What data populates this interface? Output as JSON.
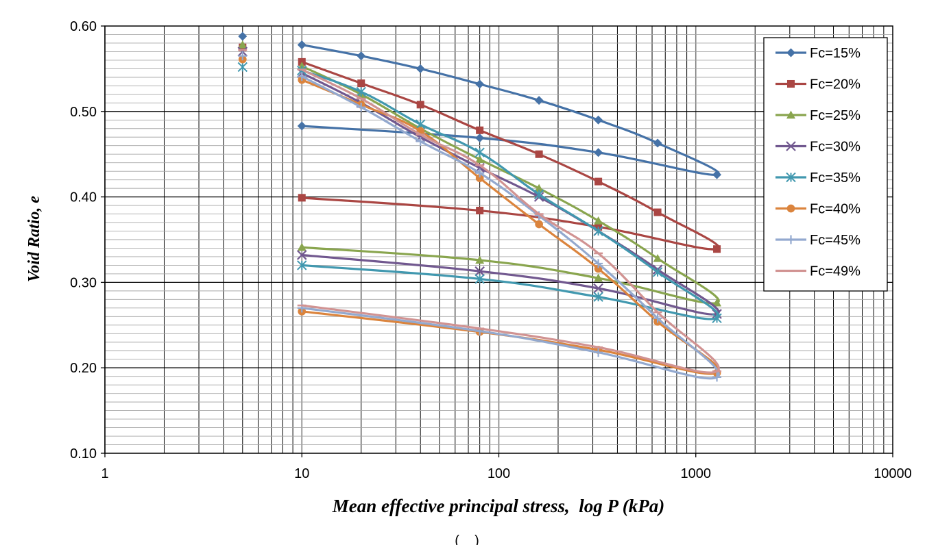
{
  "chart_data": {
    "type": "line",
    "xscale": "log",
    "xlim": [
      1,
      10000
    ],
    "ylim": [
      0.1,
      0.6
    ],
    "xlabel": "Mean effective principal stress,  log P (kPa)",
    "ylabel": "Void Ratio, e",
    "x_ticks": [
      "1",
      "10",
      "100",
      "1000",
      "10000"
    ],
    "y_ticks": [
      "0.10",
      "0.20",
      "0.30",
      "0.40",
      "0.50",
      "0.60"
    ],
    "grid": true,
    "legend_position": "top-right",
    "series": [
      {
        "name": "Fc=15%",
        "color": "#4572A7",
        "marker": "diamond",
        "initial": {
          "x": 5,
          "y": 0.588
        },
        "points": [
          [
            10,
            0.578
          ],
          [
            20,
            0.565
          ],
          [
            40,
            0.55
          ],
          [
            80,
            0.532
          ],
          [
            160,
            0.513
          ],
          [
            320,
            0.49
          ],
          [
            640,
            0.463
          ],
          [
            1280,
            0.426
          ],
          [
            320,
            0.452
          ],
          [
            80,
            0.469
          ],
          [
            10,
            0.483
          ]
        ]
      },
      {
        "name": "Fc=20%",
        "color": "#AA4643",
        "marker": "square",
        "initial": {
          "x": 5,
          "y": 0.575
        },
        "points": [
          [
            10,
            0.558
          ],
          [
            20,
            0.533
          ],
          [
            40,
            0.508
          ],
          [
            80,
            0.478
          ],
          [
            160,
            0.45
          ],
          [
            320,
            0.418
          ],
          [
            640,
            0.382
          ],
          [
            1280,
            0.339
          ],
          [
            320,
            0.365
          ],
          [
            80,
            0.384
          ],
          [
            10,
            0.399
          ]
        ]
      },
      {
        "name": "Fc=25%",
        "color": "#89A54E",
        "marker": "triangle",
        "initial": {
          "x": 5,
          "y": 0.578
        },
        "points": [
          [
            10,
            0.553
          ],
          [
            20,
            0.52
          ],
          [
            40,
            0.48
          ],
          [
            80,
            0.444
          ],
          [
            160,
            0.41
          ],
          [
            320,
            0.372
          ],
          [
            640,
            0.328
          ],
          [
            1280,
            0.276
          ],
          [
            320,
            0.305
          ],
          [
            80,
            0.326
          ],
          [
            10,
            0.341
          ]
        ]
      },
      {
        "name": "Fc=30%",
        "color": "#71588F",
        "marker": "x",
        "initial": {
          "x": 5,
          "y": 0.57
        },
        "points": [
          [
            10,
            0.545
          ],
          [
            20,
            0.51
          ],
          [
            40,
            0.47
          ],
          [
            80,
            0.434
          ],
          [
            160,
            0.4
          ],
          [
            320,
            0.36
          ],
          [
            640,
            0.315
          ],
          [
            1280,
            0.263
          ],
          [
            320,
            0.293
          ],
          [
            80,
            0.313
          ],
          [
            10,
            0.332
          ]
        ]
      },
      {
        "name": "Fc=35%",
        "color": "#4198AF",
        "marker": "star",
        "initial": {
          "x": 5,
          "y": 0.552
        },
        "points": [
          [
            10,
            0.548
          ],
          [
            20,
            0.523
          ],
          [
            40,
            0.485
          ],
          [
            80,
            0.452
          ],
          [
            160,
            0.403
          ],
          [
            320,
            0.36
          ],
          [
            640,
            0.312
          ],
          [
            1280,
            0.258
          ],
          [
            320,
            0.283
          ],
          [
            80,
            0.304
          ],
          [
            10,
            0.32
          ]
        ]
      },
      {
        "name": "Fc=40%",
        "color": "#DB843D",
        "marker": "circle",
        "initial": {
          "x": 5,
          "y": 0.561
        },
        "points": [
          [
            10,
            0.537
          ],
          [
            20,
            0.508
          ],
          [
            40,
            0.477
          ],
          [
            80,
            0.422
          ],
          [
            160,
            0.368
          ],
          [
            320,
            0.316
          ],
          [
            640,
            0.254
          ],
          [
            1280,
            0.194
          ],
          [
            320,
            0.221
          ],
          [
            80,
            0.242
          ],
          [
            10,
            0.266
          ]
        ]
      },
      {
        "name": "Fc=45%",
        "color": "#93A9CF",
        "marker": "plus",
        "initial": {
          "x": 5,
          "y": 0.565
        },
        "points": [
          [
            10,
            0.541
          ],
          [
            20,
            0.505
          ],
          [
            40,
            0.465
          ],
          [
            80,
            0.428
          ],
          [
            160,
            0.378
          ],
          [
            320,
            0.322
          ],
          [
            640,
            0.258
          ],
          [
            1280,
            0.189
          ],
          [
            320,
            0.218
          ],
          [
            80,
            0.243
          ],
          [
            10,
            0.27
          ]
        ]
      },
      {
        "name": "Fc=49%",
        "color": "#D19392",
        "marker": "dash",
        "initial": {
          "x": 5,
          "y": 0.572
        },
        "points": [
          [
            10,
            0.549
          ],
          [
            20,
            0.515
          ],
          [
            40,
            0.473
          ],
          [
            80,
            0.437
          ],
          [
            160,
            0.38
          ],
          [
            320,
            0.334
          ],
          [
            640,
            0.265
          ],
          [
            1280,
            0.196
          ],
          [
            320,
            0.224
          ],
          [
            80,
            0.246
          ],
          [
            10,
            0.273
          ]
        ]
      }
    ]
  },
  "footer_text": "(    )"
}
